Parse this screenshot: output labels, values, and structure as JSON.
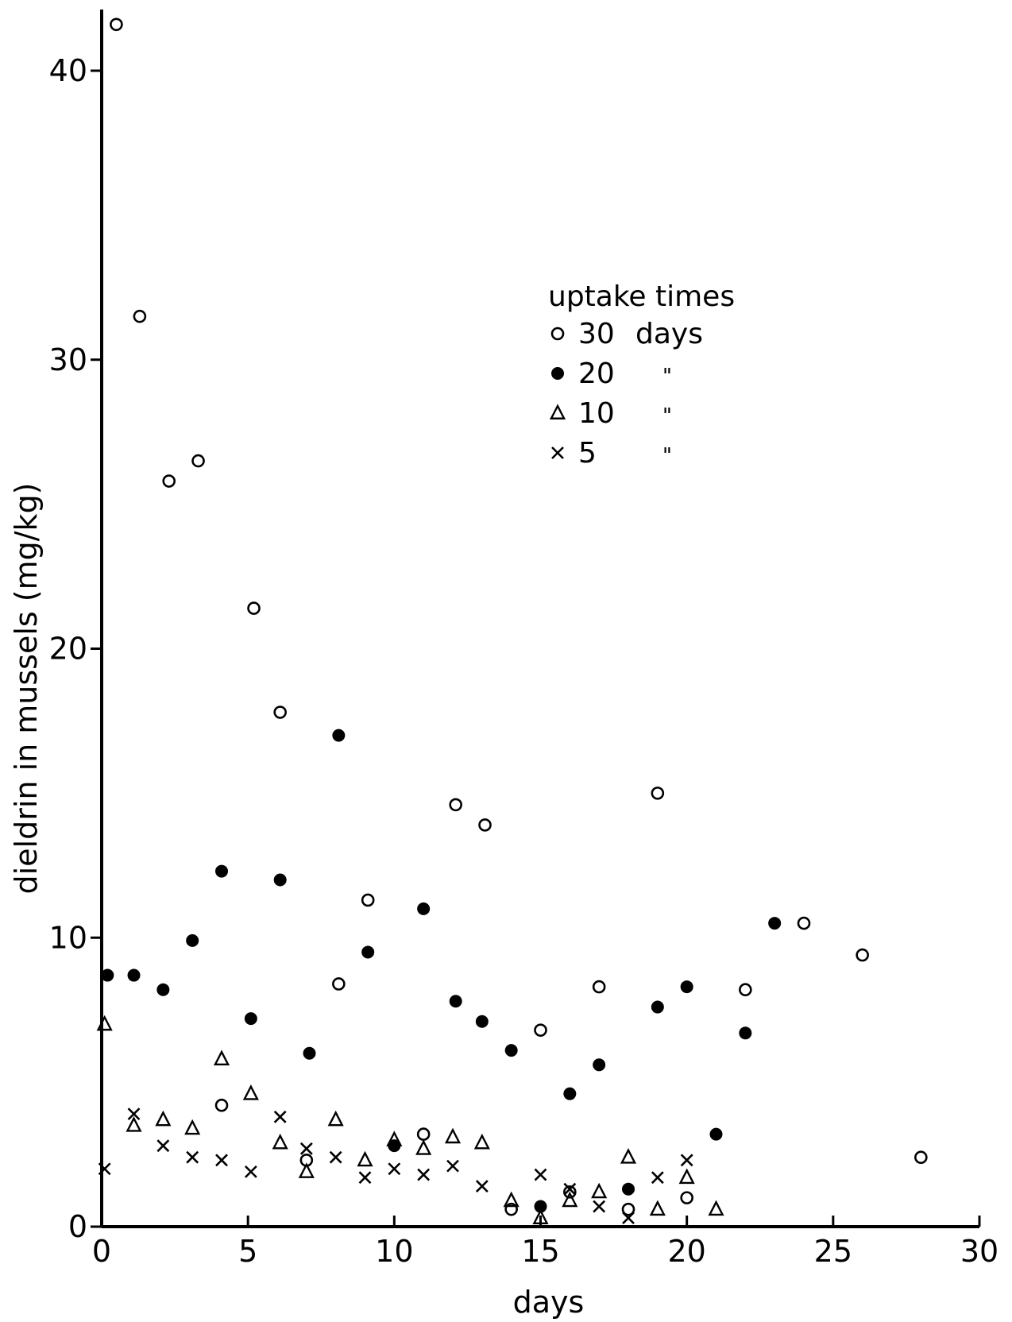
{
  "chart_data": {
    "type": "scatter",
    "xlabel": "days",
    "ylabel": "dieldrin in mussels (mg/kg)",
    "xlim": [
      0,
      30
    ],
    "ylim": [
      0,
      42
    ],
    "xticks": [
      0,
      5,
      10,
      15,
      20,
      25,
      30
    ],
    "xtick_labels": [
      "0",
      "5",
      "10",
      "15",
      "20",
      "25",
      "30"
    ],
    "yticks": [
      0,
      10,
      20,
      30,
      40
    ],
    "ytick_labels": [
      "0",
      "10",
      "20",
      "30",
      "40"
    ],
    "grid": false,
    "legend": {
      "title": "uptake times",
      "placement": "upper-right",
      "entries": [
        {
          "marker": "open-circle",
          "label": "30",
          "unit": "days"
        },
        {
          "marker": "filled-circle",
          "label": "20",
          "unit": "\""
        },
        {
          "marker": "triangle",
          "label": "10",
          "unit": "\""
        },
        {
          "marker": "cross",
          "label": "5",
          "unit": "\""
        }
      ]
    },
    "series": [
      {
        "name": "30 days",
        "marker": "open-circle",
        "points": [
          [
            0.5,
            41.6
          ],
          [
            1.3,
            31.5
          ],
          [
            2.3,
            25.8
          ],
          [
            3.3,
            26.5
          ],
          [
            5.2,
            21.4
          ],
          [
            6.1,
            17.8
          ],
          [
            8.1,
            8.4
          ],
          [
            9.1,
            11.3
          ],
          [
            12.1,
            14.6
          ],
          [
            13.1,
            13.9
          ],
          [
            15.0,
            6.8
          ],
          [
            17.0,
            8.3
          ],
          [
            19.0,
            15.0
          ],
          [
            22.0,
            8.2
          ],
          [
            24.0,
            10.5
          ],
          [
            26.0,
            9.4
          ],
          [
            28.0,
            2.4
          ],
          [
            4.1,
            4.2
          ],
          [
            7.0,
            2.3
          ],
          [
            11.0,
            3.2
          ],
          [
            14.0,
            0.6
          ],
          [
            16.0,
            1.2
          ],
          [
            18.0,
            0.6
          ],
          [
            20.0,
            1.0
          ]
        ]
      },
      {
        "name": "20 days",
        "marker": "filled-circle",
        "points": [
          [
            0.2,
            8.7
          ],
          [
            1.1,
            8.7
          ],
          [
            2.1,
            8.2
          ],
          [
            3.1,
            9.9
          ],
          [
            4.1,
            12.3
          ],
          [
            5.1,
            7.2
          ],
          [
            6.1,
            12.0
          ],
          [
            7.1,
            6.0
          ],
          [
            8.1,
            17.0
          ],
          [
            9.1,
            9.5
          ],
          [
            10.0,
            2.8
          ],
          [
            11.0,
            11.0
          ],
          [
            12.1,
            7.8
          ],
          [
            13.0,
            7.1
          ],
          [
            14.0,
            6.1
          ],
          [
            15.0,
            0.7
          ],
          [
            16.0,
            4.6
          ],
          [
            17.0,
            5.6
          ],
          [
            18.0,
            1.3
          ],
          [
            19.0,
            7.6
          ],
          [
            20.0,
            8.3
          ],
          [
            21.0,
            3.2
          ],
          [
            22.0,
            6.7
          ],
          [
            23.0,
            10.5
          ]
        ]
      },
      {
        "name": "10 days",
        "marker": "triangle",
        "points": [
          [
            0.1,
            7.0
          ],
          [
            1.1,
            3.5
          ],
          [
            2.1,
            3.7
          ],
          [
            3.1,
            3.4
          ],
          [
            4.1,
            5.8
          ],
          [
            5.1,
            4.6
          ],
          [
            6.1,
            2.9
          ],
          [
            7.0,
            1.9
          ],
          [
            8.0,
            3.7
          ],
          [
            9.0,
            2.3
          ],
          [
            10.0,
            3.0
          ],
          [
            11.0,
            2.7
          ],
          [
            12.0,
            3.1
          ],
          [
            13.0,
            2.9
          ],
          [
            14.0,
            0.9
          ],
          [
            15.0,
            0.3
          ],
          [
            16.0,
            0.9
          ],
          [
            17.0,
            1.2
          ],
          [
            18.0,
            2.4
          ],
          [
            19.0,
            0.6
          ],
          [
            20.0,
            1.7
          ],
          [
            21.0,
            0.6
          ]
        ]
      },
      {
        "name": "5 days",
        "marker": "cross",
        "points": [
          [
            0.1,
            2.0
          ],
          [
            1.1,
            3.9
          ],
          [
            2.1,
            2.8
          ],
          [
            3.1,
            2.4
          ],
          [
            4.1,
            2.3
          ],
          [
            5.1,
            1.9
          ],
          [
            6.1,
            3.8
          ],
          [
            7.0,
            2.7
          ],
          [
            8.0,
            2.4
          ],
          [
            9.0,
            1.7
          ],
          [
            10.0,
            2.0
          ],
          [
            11.0,
            1.8
          ],
          [
            12.0,
            2.1
          ],
          [
            13.0,
            1.4
          ],
          [
            15.0,
            1.8
          ],
          [
            16.0,
            1.3
          ],
          [
            17.0,
            0.7
          ],
          [
            18.0,
            0.3
          ],
          [
            19.0,
            1.7
          ],
          [
            20.0,
            2.3
          ]
        ]
      }
    ]
  }
}
